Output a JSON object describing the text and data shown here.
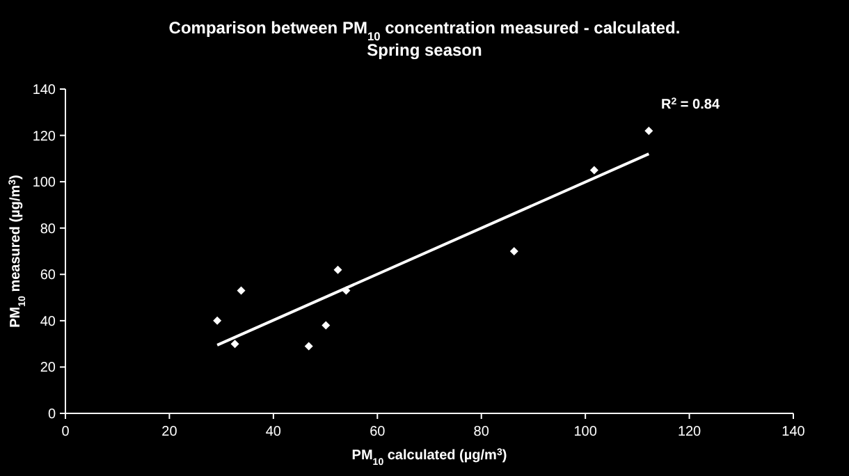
{
  "chart_data": {
    "type": "scatter",
    "title": "Comparison between PM$_{10}$ concentration measured - calculated.",
    "subtitle": "Spring season",
    "xlabel": "PM$_{10}$ calculated (µg/m$^{3}$)",
    "ylabel": "PM$_{10}$ measured (µg/m$^{3}$)",
    "annotations": [
      "R$^{2}$ = 0.84"
    ],
    "xlim": [
      0,
      140
    ],
    "xticks": [
      0,
      20,
      40,
      60,
      80,
      100,
      120,
      140
    ],
    "ylim": [
      0,
      140
    ],
    "yticks": [
      0,
      20,
      40,
      60,
      80,
      100,
      120,
      140
    ],
    "grid": false,
    "marker": "diamond",
    "series": [
      {
        "color": "#ffffff",
        "x": [
          29.2,
          32.6,
          33.8,
          46.8,
          50.1,
          52.4,
          54,
          86.3,
          101.7,
          112.2
        ],
        "values": [
          40,
          30,
          53,
          29,
          38,
          62,
          53,
          70,
          105,
          122
        ]
      },
      {
        "type": "line",
        "color": "#ffffff",
        "x": [
          29.2,
          112.2
        ],
        "values": [
          29.5,
          112
        ],
        "line_style": "solid",
        "marker": "none"
      }
    ]
  }
}
